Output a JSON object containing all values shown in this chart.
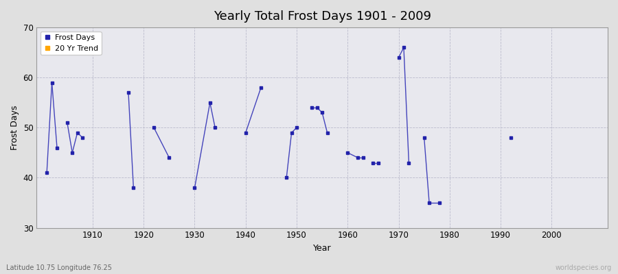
{
  "title": "Yearly Total Frost Days 1901 - 2009",
  "xlabel": "Year",
  "ylabel": "Frost Days",
  "subtitle": "Latitude 10.75 Longitude 76.25",
  "watermark": "worldspecies.org",
  "xlim": [
    1899,
    2011
  ],
  "ylim": [
    30,
    70
  ],
  "yticks": [
    30,
    40,
    50,
    60,
    70
  ],
  "xticks": [
    1910,
    1920,
    1930,
    1940,
    1950,
    1960,
    1970,
    1980,
    1990,
    2000
  ],
  "line_color": "#4444bb",
  "bg_color": "#e0e0e0",
  "plot_bg": "#e8e8ee",
  "grid_color": "#bbbbcc",
  "legend_frost_color": "#2222aa",
  "legend_trend_color": "#ffa500",
  "segments": [
    {
      "years": [
        1901,
        1902
      ],
      "values": [
        41,
        59
      ]
    },
    {
      "years": [
        1902,
        1903
      ],
      "values": [
        59,
        46
      ]
    },
    {
      "years": [
        1905,
        1906
      ],
      "values": [
        51,
        45
      ]
    },
    {
      "years": [
        1906,
        1907
      ],
      "values": [
        45,
        49
      ]
    },
    {
      "years": [
        1907,
        1908
      ],
      "values": [
        49,
        48
      ]
    },
    {
      "years": [
        1917,
        1918
      ],
      "values": [
        57,
        38
      ]
    },
    {
      "years": [
        1922,
        1925
      ],
      "values": [
        50,
        44
      ]
    },
    {
      "years": [
        1930,
        1933
      ],
      "values": [
        38,
        55
      ]
    },
    {
      "years": [
        1933,
        1934
      ],
      "values": [
        55,
        50
      ]
    },
    {
      "years": [
        1940,
        1943
      ],
      "values": [
        49,
        58
      ]
    },
    {
      "years": [
        1948,
        1949
      ],
      "values": [
        40,
        49
      ]
    },
    {
      "years": [
        1949,
        1950
      ],
      "values": [
        49,
        50
      ]
    },
    {
      "years": [
        1953,
        1954
      ],
      "values": [
        54,
        54
      ]
    },
    {
      "years": [
        1954,
        1955
      ],
      "values": [
        54,
        53
      ]
    },
    {
      "years": [
        1955,
        1956
      ],
      "values": [
        53,
        49
      ]
    },
    {
      "years": [
        1960,
        1962
      ],
      "values": [
        45,
        44
      ]
    },
    {
      "years": [
        1962,
        1963
      ],
      "values": [
        44,
        44
      ]
    },
    {
      "years": [
        1965,
        1966
      ],
      "values": [
        43,
        43
      ]
    },
    {
      "years": [
        1970,
        1971
      ],
      "values": [
        64,
        66
      ]
    },
    {
      "years": [
        1971,
        1972
      ],
      "values": [
        66,
        43
      ]
    },
    {
      "years": [
        1975,
        1976
      ],
      "values": [
        48,
        35
      ]
    },
    {
      "years": [
        1976,
        1978
      ],
      "values": [
        35,
        35
      ]
    }
  ],
  "isolated_points": [
    {
      "year": 1992,
      "value": 48
    }
  ]
}
